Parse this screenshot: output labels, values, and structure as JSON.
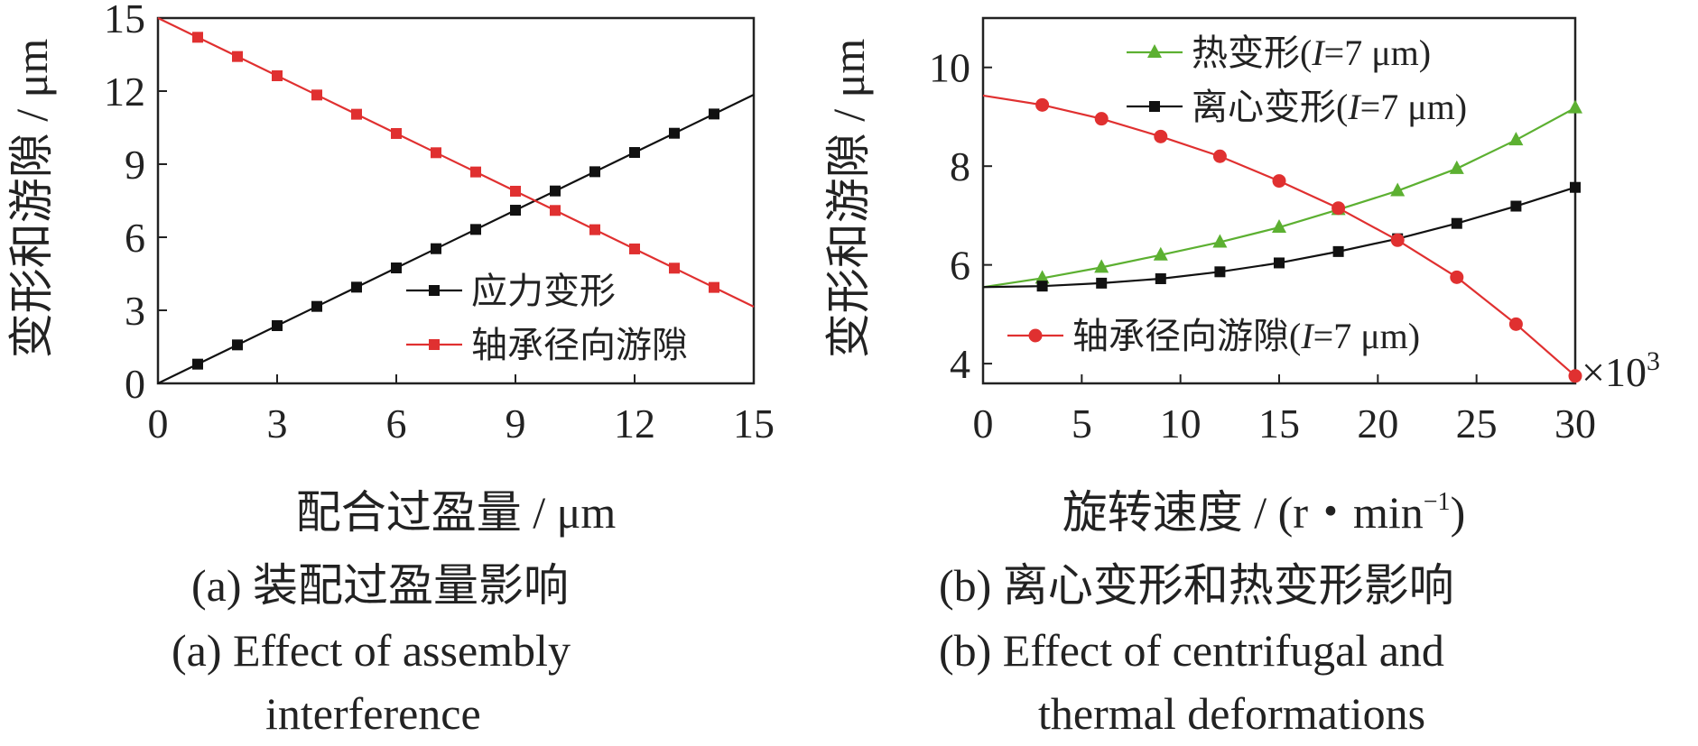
{
  "captions": {
    "a_zh": "(a)  装配过盈量影响",
    "a_en_1": "(a)  Effect of assembly",
    "a_en_2": "interference",
    "b_zh": "(b)  离心变形和热变形影响",
    "b_en_1": "(b)  Effect of centrifugal and",
    "b_en_2": "thermal deformations"
  },
  "chart_data": [
    {
      "type": "line",
      "xlabel": "配合过盈量 / μm",
      "ylabel": "变形和游隙 / μm",
      "xlim": [
        0,
        15
      ],
      "ylim": [
        0,
        15
      ],
      "xticks": [
        "0",
        "3",
        "6",
        "9",
        "12",
        "15"
      ],
      "yticks": [
        "0",
        "3",
        "6",
        "9",
        "12",
        "15"
      ],
      "legend_position": "lower-right",
      "grid": false,
      "series": [
        {
          "name": "应力变形",
          "color": "#111111",
          "marker": "square",
          "x": [
            0,
            1,
            2,
            3,
            4,
            5,
            6,
            7,
            8,
            9,
            10,
            11,
            12,
            13,
            14,
            15
          ],
          "y": [
            0.0,
            0.79,
            1.58,
            2.37,
            3.16,
            3.95,
            4.74,
            5.53,
            6.32,
            7.11,
            7.9,
            8.69,
            9.48,
            10.27,
            11.06,
            11.85
          ]
        },
        {
          "name": "轴承径向游隙",
          "color": "#e03030",
          "marker": "square",
          "x": [
            0,
            1,
            2,
            3,
            4,
            5,
            6,
            7,
            8,
            9,
            10,
            11,
            12,
            13,
            14,
            15
          ],
          "y": [
            15.0,
            14.21,
            13.42,
            12.63,
            11.84,
            11.05,
            10.26,
            9.47,
            8.68,
            7.89,
            7.1,
            6.31,
            5.52,
            4.73,
            3.94,
            3.15
          ]
        }
      ]
    },
    {
      "type": "line",
      "xlabel": "旋转速度 / (r・min",
      "xlabel_sup": "−1",
      "xlabel_end": ")",
      "ylabel": "变形和游隙 / μm",
      "x_multiplier": "×10",
      "x_multiplier_sup": "3",
      "xlim": [
        0,
        30
      ],
      "ylim": [
        3.6,
        11
      ],
      "xticks": [
        "0",
        "5",
        "10",
        "15",
        "20",
        "25",
        "30"
      ],
      "yticks": [
        "4",
        "6",
        "8",
        "10"
      ],
      "legend_position": "top-right / bottom-right",
      "grid": false,
      "series": [
        {
          "name_prefix": "热变形(",
          "name_italic": "I",
          "name_suffix": "=7 μm)",
          "color": "#5cb031",
          "marker": "triangle",
          "x": [
            0,
            3,
            6,
            9,
            12,
            15,
            18,
            21,
            24,
            27,
            30
          ],
          "y": [
            5.55,
            5.73,
            5.95,
            6.2,
            6.46,
            6.76,
            7.12,
            7.5,
            7.95,
            8.53,
            9.18
          ]
        },
        {
          "name_prefix": "离心变形(",
          "name_italic": "I",
          "name_suffix": "=7 μm)",
          "color": "#111111",
          "marker": "square",
          "x": [
            0,
            3,
            6,
            9,
            12,
            15,
            18,
            21,
            24,
            27,
            30
          ],
          "y": [
            5.55,
            5.57,
            5.63,
            5.72,
            5.86,
            6.04,
            6.27,
            6.53,
            6.84,
            7.19,
            7.57
          ]
        },
        {
          "name_prefix": "轴承径向游隙(",
          "name_italic": "I",
          "name_suffix": "=7 μm)",
          "color": "#e03030",
          "marker": "circle",
          "x": [
            0,
            3,
            6,
            9,
            12,
            15,
            18,
            21,
            24,
            27,
            30
          ],
          "y": [
            9.43,
            9.24,
            8.96,
            8.6,
            8.2,
            7.7,
            7.15,
            6.5,
            5.75,
            4.8,
            3.75
          ]
        }
      ]
    }
  ]
}
